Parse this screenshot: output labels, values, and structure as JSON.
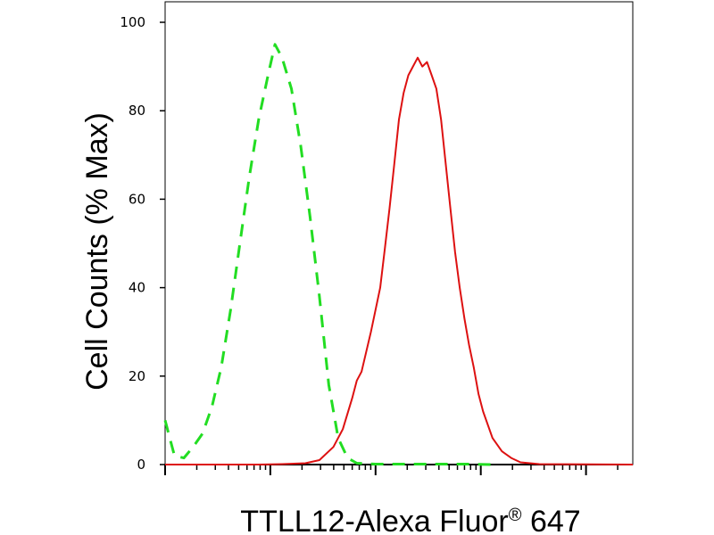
{
  "chart_data": {
    "type": "line",
    "title": "",
    "ylabel": "Cell Counts (% Max)",
    "xlabel": {
      "main": "TTLL12-Alexa Fluor",
      "superscript": "®",
      "suffix": " 647"
    },
    "ylim": [
      0,
      100
    ],
    "yticks": [
      "0",
      "20",
      "40",
      "60",
      "80",
      "100"
    ],
    "xlim": [
      0,
      1
    ],
    "x_scale": "log",
    "grid": false,
    "legend": "none",
    "series": [
      {
        "color": "#22dd22",
        "style": "dashed",
        "points": [
          [
            0.0,
            10
          ],
          [
            0.01,
            6
          ],
          [
            0.02,
            2
          ],
          [
            0.04,
            1.5
          ],
          [
            0.06,
            4
          ],
          [
            0.08,
            7
          ],
          [
            0.1,
            13
          ],
          [
            0.12,
            22
          ],
          [
            0.14,
            35
          ],
          [
            0.16,
            50
          ],
          [
            0.18,
            65
          ],
          [
            0.2,
            78
          ],
          [
            0.22,
            88
          ],
          [
            0.235,
            95
          ],
          [
            0.25,
            92
          ],
          [
            0.27,
            85
          ],
          [
            0.29,
            72
          ],
          [
            0.31,
            56
          ],
          [
            0.33,
            38
          ],
          [
            0.35,
            18
          ],
          [
            0.37,
            6
          ],
          [
            0.39,
            1.5
          ],
          [
            0.41,
            0.3
          ],
          [
            0.45,
            0.1
          ],
          [
            0.55,
            0.1
          ],
          [
            0.65,
            0.1
          ],
          [
            0.7,
            0
          ]
        ]
      },
      {
        "color": "#dd1111",
        "style": "solid",
        "points": [
          [
            0.0,
            0
          ],
          [
            0.2,
            0
          ],
          [
            0.25,
            0.1
          ],
          [
            0.3,
            0.3
          ],
          [
            0.33,
            1
          ],
          [
            0.36,
            4
          ],
          [
            0.38,
            8
          ],
          [
            0.4,
            15
          ],
          [
            0.41,
            19
          ],
          [
            0.42,
            21
          ],
          [
            0.44,
            30
          ],
          [
            0.46,
            40
          ],
          [
            0.47,
            49
          ],
          [
            0.48,
            58
          ],
          [
            0.49,
            68
          ],
          [
            0.5,
            78
          ],
          [
            0.51,
            84
          ],
          [
            0.52,
            88
          ],
          [
            0.53,
            90
          ],
          [
            0.54,
            92
          ],
          [
            0.55,
            90
          ],
          [
            0.56,
            91
          ],
          [
            0.57,
            88
          ],
          [
            0.58,
            85
          ],
          [
            0.59,
            78
          ],
          [
            0.6,
            68
          ],
          [
            0.61,
            58
          ],
          [
            0.62,
            48
          ],
          [
            0.63,
            40
          ],
          [
            0.64,
            33
          ],
          [
            0.65,
            27
          ],
          [
            0.66,
            22
          ],
          [
            0.67,
            16
          ],
          [
            0.68,
            12
          ],
          [
            0.7,
            6
          ],
          [
            0.72,
            3
          ],
          [
            0.74,
            1.5
          ],
          [
            0.76,
            0.5
          ],
          [
            0.8,
            0.1
          ],
          [
            1.0,
            0
          ]
        ]
      }
    ]
  }
}
